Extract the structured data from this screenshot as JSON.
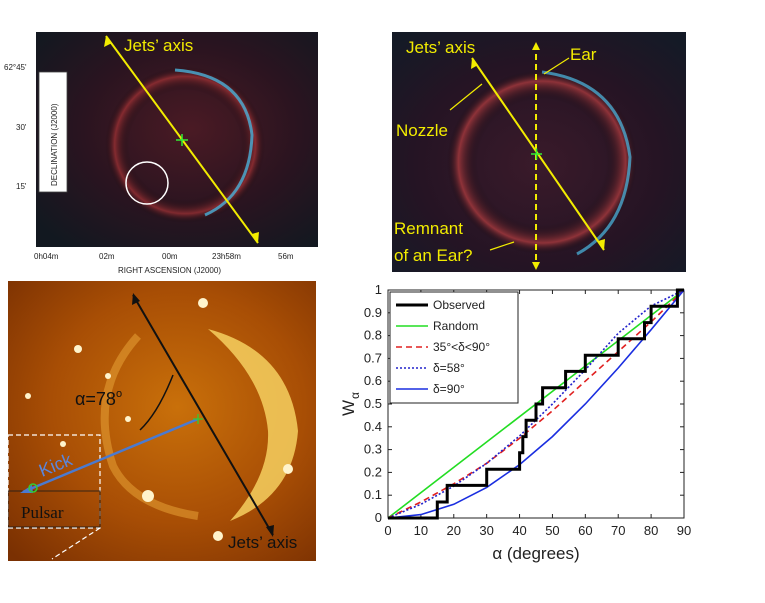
{
  "panel_a": {
    "jets_label": "Jets’ axis",
    "y_axis_title": "DECLINATION (J2000)",
    "x_axis_title": "RIGHT ASCENSION (J2000)",
    "y_ticks": [
      "62°45'",
      "30'",
      "15'"
    ],
    "x_ticks": [
      "0h04m",
      "02m",
      "00m",
      "23h58m",
      "56m"
    ]
  },
  "panel_b": {
    "jets_label": "Jets’ axis",
    "ear_label": "Ear",
    "nozzle_label": "Nozzle",
    "remnant_label_1": "Remnant",
    "remnant_label_2": "of an Ear?"
  },
  "panel_c": {
    "alpha_label": "α=78",
    "alpha_degree": "o",
    "kick_label": "Kick",
    "pulsar_label": "Pulsar",
    "jets_label": "Jets’ axis"
  },
  "chart_data": {
    "type": "line",
    "xlabel": "α (degrees)",
    "ylabel": "W",
    "ylabel_sub": "α",
    "xlim": [
      0,
      90
    ],
    "ylim": [
      0,
      1
    ],
    "x_ticks": [
      0,
      10,
      20,
      30,
      40,
      50,
      60,
      70,
      80,
      90
    ],
    "y_ticks": [
      0,
      0.1,
      0.2,
      0.3,
      0.4,
      0.5,
      0.6,
      0.7,
      0.8,
      0.9,
      1
    ],
    "legend_position": "top-left",
    "series": [
      {
        "name": "Observed",
        "color": "#000000",
        "style": "step",
        "x": [
          0,
          15,
          15,
          18,
          18,
          30,
          30,
          40,
          40,
          41,
          41,
          42,
          42,
          45,
          45,
          47,
          47,
          54,
          54,
          60,
          60,
          70,
          70,
          78,
          78,
          80,
          80,
          82,
          82,
          88,
          88,
          90
        ],
        "y": [
          0,
          0,
          0.07,
          0.07,
          0.143,
          0.143,
          0.214,
          0.214,
          0.286,
          0.286,
          0.357,
          0.357,
          0.429,
          0.429,
          0.5,
          0.5,
          0.571,
          0.571,
          0.643,
          0.643,
          0.714,
          0.714,
          0.786,
          0.786,
          0.857,
          0.857,
          0.929,
          0.929,
          0.929,
          0.929,
          1,
          1
        ]
      },
      {
        "name": "Random",
        "color": "#22dd22",
        "style": "solid",
        "x": [
          0,
          90
        ],
        "y": [
          0,
          1
        ]
      },
      {
        "name": "35°<δ<90°",
        "color": "#e02020",
        "style": "dashed",
        "x": [
          0,
          10,
          20,
          30,
          40,
          50,
          60,
          70,
          80,
          90
        ],
        "y": [
          0,
          0.07,
          0.15,
          0.24,
          0.35,
          0.47,
          0.6,
          0.73,
          0.86,
          1
        ]
      },
      {
        "name": "δ=58°",
        "color": "#2222cc",
        "style": "dotted",
        "x": [
          0,
          10,
          20,
          30,
          40,
          50,
          60,
          70,
          80,
          90
        ],
        "y": [
          0,
          0.06,
          0.14,
          0.24,
          0.36,
          0.5,
          0.65,
          0.81,
          0.93,
          1
        ]
      },
      {
        "name": "δ=90°",
        "color": "#1a2ee0",
        "style": "solid",
        "x": [
          0,
          10,
          20,
          30,
          40,
          50,
          60,
          70,
          80,
          90
        ],
        "y": [
          0,
          0.015,
          0.06,
          0.134,
          0.234,
          0.357,
          0.5,
          0.658,
          0.826,
          1
        ]
      }
    ]
  }
}
